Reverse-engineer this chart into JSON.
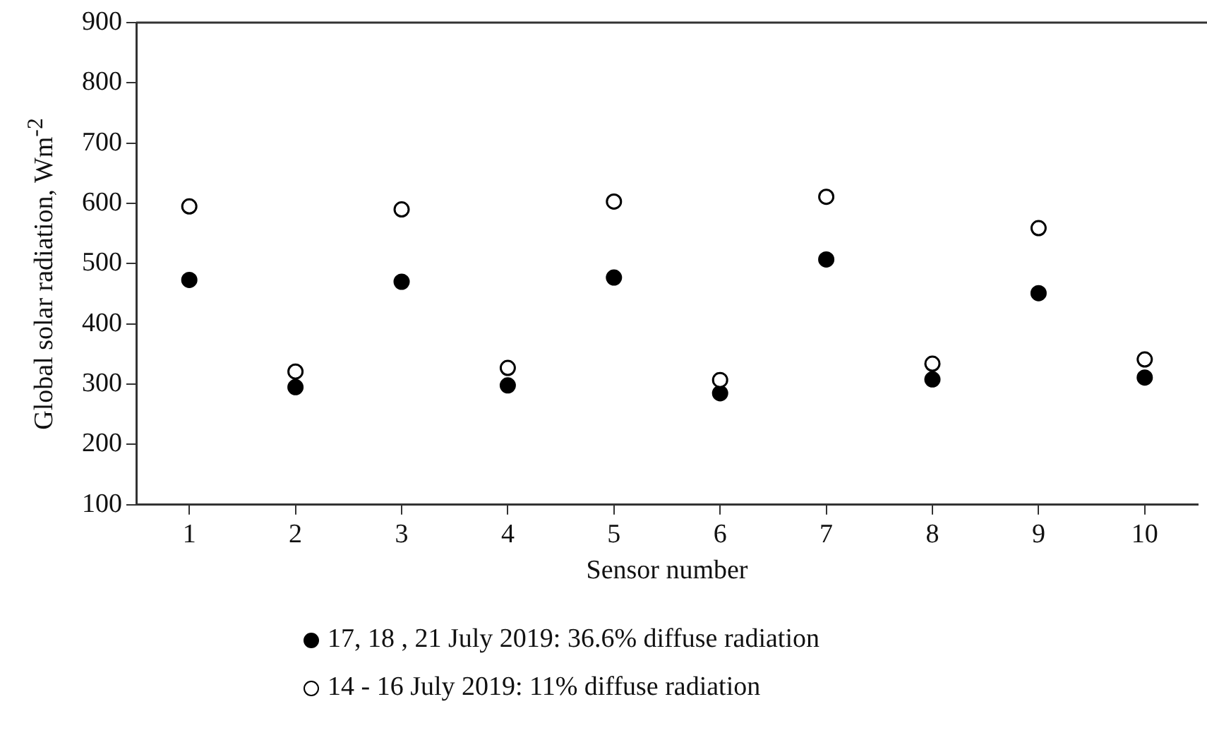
{
  "chart_data": {
    "type": "scatter",
    "xlabel": "Sensor number",
    "ylabel": "Global solar radiation, Wm$^{-2}$",
    "categories": [
      "1",
      "2",
      "3",
      "4",
      "5",
      "6",
      "7",
      "8",
      "9",
      "10"
    ],
    "series": [
      {
        "name": "17, 18 , 21 July 2019: 36.6% diffuse radiation",
        "color": "#000000",
        "values": [
          473,
          295,
          470,
          298,
          477,
          285,
          507,
          308,
          451,
          311
        ]
      },
      {
        "name": "14 - 16 July 2019: 11% diffuse radiation",
        "color": "#ffffff",
        "values": [
          595,
          321,
          590,
          327,
          603,
          307,
          611,
          334,
          559,
          341
        ]
      }
    ],
    "ylim": [
      100,
      900
    ],
    "yticks": [
      100,
      200,
      300,
      400,
      500,
      600,
      700,
      800,
      900
    ],
    "grid": false,
    "legend": "bottom",
    "marker": "circle"
  }
}
